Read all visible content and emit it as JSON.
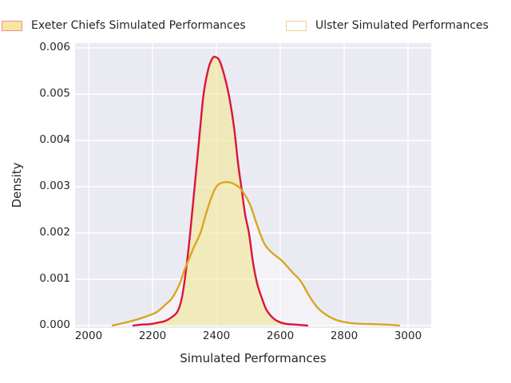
{
  "chart_data": {
    "type": "area",
    "subtype": "kde-density",
    "title": "",
    "xlabel": "Simulated Performances",
    "ylabel": "Density",
    "x_ticks": [
      "2000",
      "2200",
      "2400",
      "2600",
      "2800",
      "3000"
    ],
    "y_ticks": [
      "0.000",
      "0.001",
      "0.002",
      "0.003",
      "0.004",
      "0.005",
      "0.006"
    ],
    "xlim": [
      1958,
      3072
    ],
    "ylim": [
      0,
      0.00615
    ],
    "grid": true,
    "legend_position": "top",
    "plot_bg_color": "#eaeaf2",
    "grid_color": "#ffffff",
    "text_color": "#262626",
    "series": [
      {
        "name": "Exeter Chiefs Simulated Performances",
        "line_color": "#dc143c",
        "fill_color": "#f0e68c",
        "fill_opacity": 0.55,
        "legend_swatch_fill": "#f6e69e",
        "legend_swatch_border": "#ee8c9d",
        "points": [
          [
            2140,
            0.0
          ],
          [
            2165,
            2e-05
          ],
          [
            2190,
            3e-05
          ],
          [
            2215,
            6e-05
          ],
          [
            2240,
            0.0001
          ],
          [
            2260,
            0.00018
          ],
          [
            2278,
            0.0003
          ],
          [
            2292,
            0.0006
          ],
          [
            2305,
            0.0012
          ],
          [
            2318,
            0.002
          ],
          [
            2332,
            0.003
          ],
          [
            2347,
            0.0041
          ],
          [
            2360,
            0.005
          ],
          [
            2375,
            0.00555
          ],
          [
            2388,
            0.00578
          ],
          [
            2398,
            0.0058
          ],
          [
            2410,
            0.00572
          ],
          [
            2425,
            0.0054
          ],
          [
            2440,
            0.00495
          ],
          [
            2455,
            0.0043
          ],
          [
            2468,
            0.0035
          ],
          [
            2478,
            0.003
          ],
          [
            2490,
            0.0024
          ],
          [
            2502,
            0.002
          ],
          [
            2515,
            0.00135
          ],
          [
            2528,
            0.0009
          ],
          [
            2542,
            0.0006
          ],
          [
            2556,
            0.00035
          ],
          [
            2572,
            0.0002
          ],
          [
            2590,
            0.0001
          ],
          [
            2615,
            4e-05
          ],
          [
            2650,
            2e-05
          ],
          [
            2685,
            0.0
          ]
        ]
      },
      {
        "name": "Ulster Simulated Performances",
        "line_color": "#daa520",
        "fill_color": "#ffffff",
        "fill_opacity": 0.38,
        "legend_swatch_fill": "#ffffff",
        "legend_swatch_border": "#eccf96",
        "points": [
          [
            2075,
            0.0
          ],
          [
            2100,
            4e-05
          ],
          [
            2130,
            9e-05
          ],
          [
            2160,
            0.00015
          ],
          [
            2190,
            0.00022
          ],
          [
            2215,
            0.0003
          ],
          [
            2240,
            0.00045
          ],
          [
            2262,
            0.0006
          ],
          [
            2285,
            0.0009
          ],
          [
            2300,
            0.0012
          ],
          [
            2315,
            0.00145
          ],
          [
            2330,
            0.0017
          ],
          [
            2350,
            0.002
          ],
          [
            2368,
            0.00242
          ],
          [
            2385,
            0.00278
          ],
          [
            2400,
            0.003
          ],
          [
            2415,
            0.00308
          ],
          [
            2432,
            0.0031
          ],
          [
            2448,
            0.00308
          ],
          [
            2465,
            0.00302
          ],
          [
            2480,
            0.00292
          ],
          [
            2505,
            0.00262
          ],
          [
            2525,
            0.00222
          ],
          [
            2548,
            0.0018
          ],
          [
            2570,
            0.0016
          ],
          [
            2605,
            0.0014
          ],
          [
            2638,
            0.00115
          ],
          [
            2665,
            0.00095
          ],
          [
            2690,
            0.00065
          ],
          [
            2715,
            0.0004
          ],
          [
            2742,
            0.00024
          ],
          [
            2772,
            0.00013
          ],
          [
            2805,
            7e-05
          ],
          [
            2845,
            4e-05
          ],
          [
            2895,
            3e-05
          ],
          [
            2935,
            2e-05
          ],
          [
            2972,
            0.0
          ]
        ]
      }
    ]
  }
}
